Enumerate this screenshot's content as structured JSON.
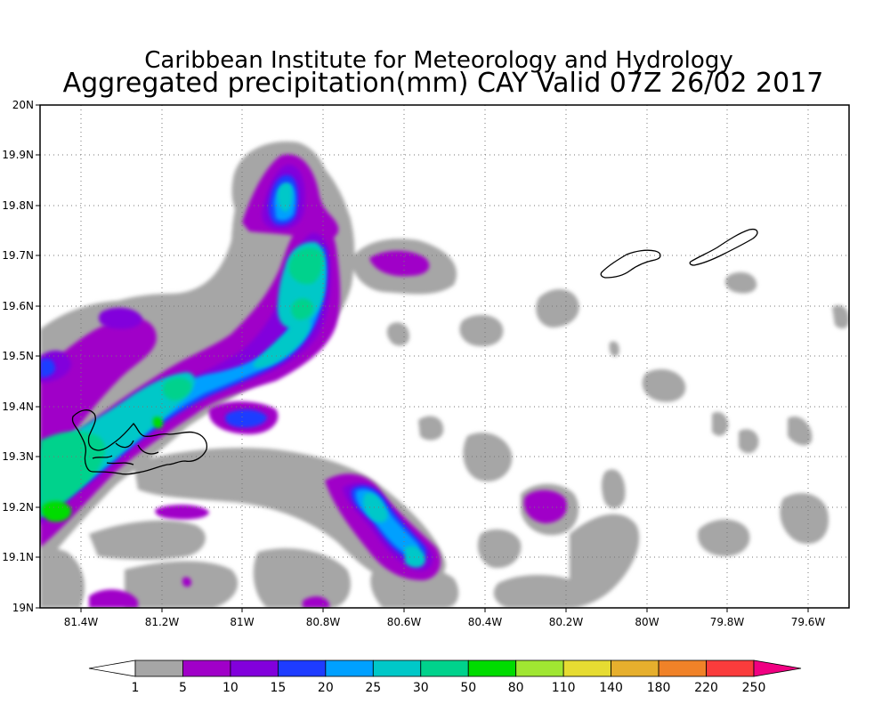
{
  "title": {
    "line1": "Caribbean Institute for Meteorology and Hydrology",
    "line2": "Aggregated precipitation(mm) CAY Valid 07Z 26/02 2017"
  },
  "map": {
    "lon_range": [
      -81.5,
      -79.5
    ],
    "lat_range": [
      19.0,
      20.0
    ],
    "grid": "dotted",
    "lon_ticks": [
      {
        "value": -81.4,
        "label": "81.4W"
      },
      {
        "value": -81.2,
        "label": "81.2W"
      },
      {
        "value": -81.0,
        "label": "81W"
      },
      {
        "value": -80.8,
        "label": "80.8W"
      },
      {
        "value": -80.6,
        "label": "80.6W"
      },
      {
        "value": -80.4,
        "label": "80.4W"
      },
      {
        "value": -80.2,
        "label": "80.2W"
      },
      {
        "value": -80.0,
        "label": "80W"
      },
      {
        "value": -79.8,
        "label": "79.8W"
      },
      {
        "value": -79.6,
        "label": "79.6W"
      }
    ],
    "lat_ticks": [
      {
        "value": 19.0,
        "label": "19N"
      },
      {
        "value": 19.1,
        "label": "19.1N"
      },
      {
        "value": 19.2,
        "label": "19.2N"
      },
      {
        "value": 19.3,
        "label": "19.3N"
      },
      {
        "value": 19.4,
        "label": "19.4N"
      },
      {
        "value": 19.5,
        "label": "19.5N"
      },
      {
        "value": 19.6,
        "label": "19.6N"
      },
      {
        "value": 19.7,
        "label": "19.7N"
      },
      {
        "value": 19.8,
        "label": "19.8N"
      },
      {
        "value": 19.9,
        "label": "19.9N"
      },
      {
        "value": 20.0,
        "label": "20N"
      }
    ]
  },
  "colorbar": {
    "labels": [
      "1",
      "5",
      "10",
      "15",
      "20",
      "25",
      "30",
      "50",
      "80",
      "110",
      "140",
      "180",
      "220",
      "250"
    ],
    "colors": [
      "#ffffff",
      "#a6a6a6",
      "#a000c8",
      "#8200dc",
      "#1e3cff",
      "#00a0ff",
      "#00c8c8",
      "#00d28c",
      "#00dc00",
      "#a0e632",
      "#e6dc32",
      "#e6af2d",
      "#f08228",
      "#fa3c3c",
      "#f00082"
    ]
  },
  "precip_cells": [
    {
      "lon": -81.45,
      "lat": 19.25,
      "rx": 0.09,
      "ry": 0.08,
      "level": 8
    },
    {
      "lon": -81.43,
      "lat": 19.2,
      "rx": 0.04,
      "ry": 0.03,
      "level": 9
    },
    {
      "lon": -81.35,
      "lat": 19.32,
      "rx": 0.08,
      "ry": 0.05,
      "level": 7
    },
    {
      "lon": -81.25,
      "lat": 19.36,
      "rx": 0.07,
      "ry": 0.04,
      "level": 7
    },
    {
      "lon": -81.18,
      "lat": 19.42,
      "rx": 0.06,
      "ry": 0.05,
      "level": 6
    },
    {
      "lon": -81.1,
      "lat": 19.47,
      "rx": 0.08,
      "ry": 0.04,
      "level": 4
    },
    {
      "lon": -80.97,
      "lat": 19.47,
      "rx": 0.06,
      "ry": 0.04,
      "level": 4
    },
    {
      "lon": -80.85,
      "lat": 19.53,
      "rx": 0.07,
      "ry": 0.06,
      "level": 6
    },
    {
      "lon": -80.84,
      "lat": 19.62,
      "rx": 0.06,
      "ry": 0.06,
      "level": 6
    },
    {
      "lon": -80.84,
      "lat": 19.69,
      "rx": 0.05,
      "ry": 0.04,
      "level": 7
    },
    {
      "lon": -80.91,
      "lat": 19.82,
      "rx": 0.03,
      "ry": 0.05,
      "level": 6
    },
    {
      "lon": -80.67,
      "lat": 19.21,
      "rx": 0.05,
      "ry": 0.05,
      "level": 6
    },
    {
      "lon": -80.58,
      "lat": 19.1,
      "rx": 0.04,
      "ry": 0.03,
      "level": 7
    },
    {
      "lon": -80.62,
      "lat": 19.14,
      "rx": 0.04,
      "ry": 0.04,
      "level": 4
    },
    {
      "lon": -80.97,
      "lat": 19.37,
      "rx": 0.03,
      "ry": 0.02,
      "level": 5
    },
    {
      "lon": -81.28,
      "lat": 19.58,
      "rx": 0.03,
      "ry": 0.02,
      "level": 4
    },
    {
      "lon": -81.17,
      "lat": 19.37,
      "rx": 0.02,
      "ry": 0.02,
      "level": 9
    }
  ]
}
